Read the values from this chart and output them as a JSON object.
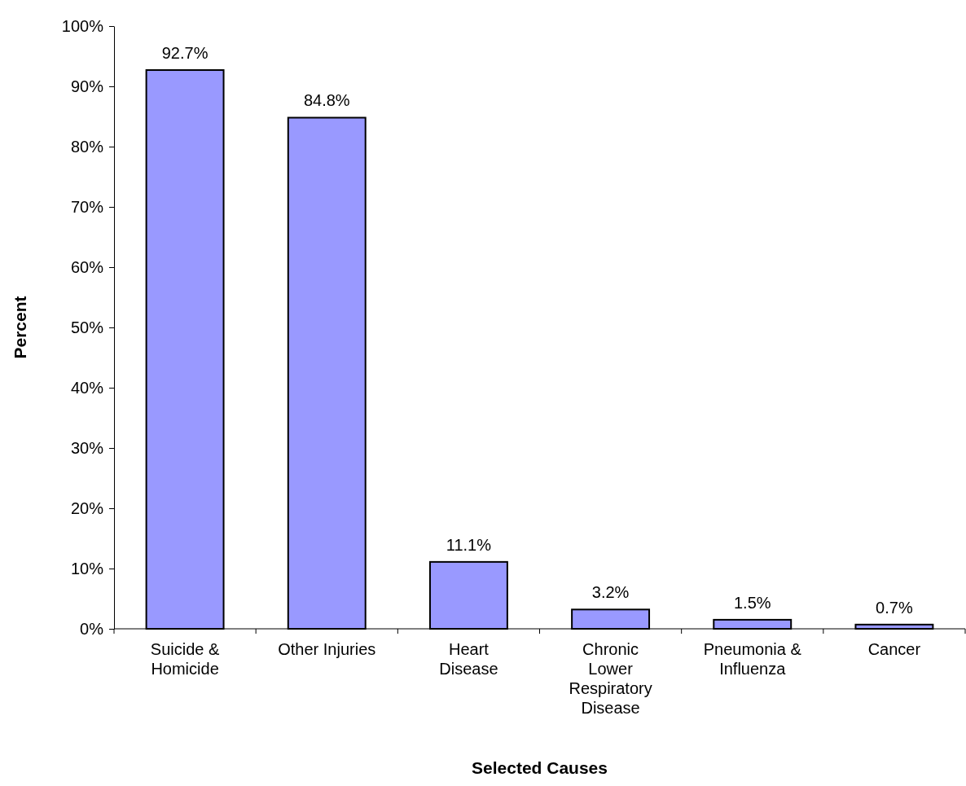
{
  "chart_data": {
    "type": "bar",
    "xlabel": "Selected Causes",
    "ylabel": "Percent",
    "categories": [
      "Suicide & Homicide",
      "Other Injuries",
      "Heart Disease",
      "Chronic Lower Respiratory Disease",
      "Pneumonia & Influenza",
      "Cancer"
    ],
    "values": [
      92.7,
      84.8,
      11.1,
      3.2,
      1.5,
      0.7
    ],
    "value_labels": [
      "92.7%",
      "84.8%",
      "11.1%",
      "3.2%",
      "1.5%",
      "0.7%"
    ],
    "color": "#9999ff",
    "ylim": [
      0,
      100
    ],
    "yticks": [
      {
        "value": 0,
        "label": "0%"
      },
      {
        "value": 10,
        "label": "10%"
      },
      {
        "value": 20,
        "label": "20%"
      },
      {
        "value": 30,
        "label": "30%"
      },
      {
        "value": 40,
        "label": "40%"
      },
      {
        "value": 50,
        "label": "50%"
      },
      {
        "value": 60,
        "label": "60%"
      },
      {
        "value": 70,
        "label": "70%"
      },
      {
        "value": 80,
        "label": "80%"
      },
      {
        "value": 90,
        "label": "90%"
      },
      {
        "value": 100,
        "label": "100%"
      }
    ],
    "grid": false
  }
}
